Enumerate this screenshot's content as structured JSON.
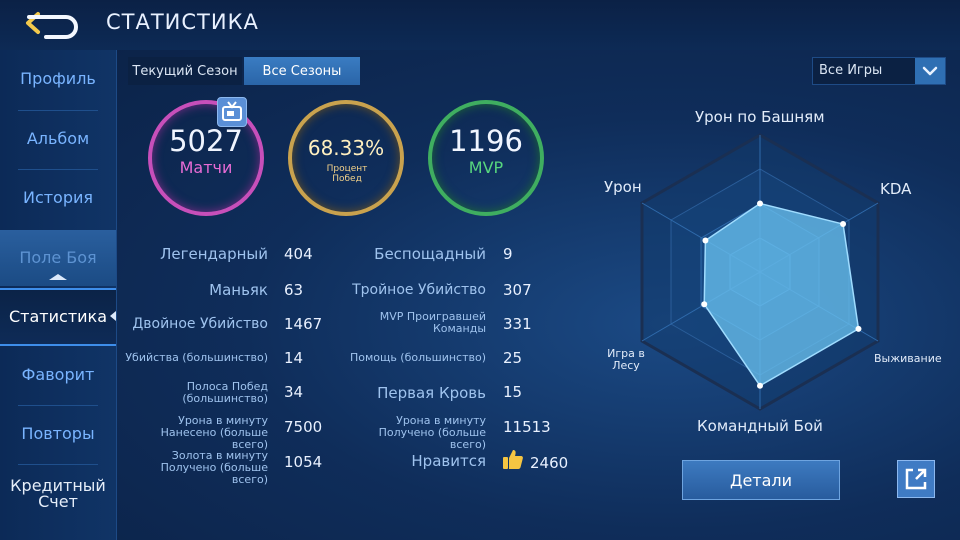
{
  "header": {
    "title": "СТАТИСТИКА",
    "back_icon": "back-arrow-icon"
  },
  "sidebar": {
    "items": [
      {
        "label": "Профиль"
      },
      {
        "label": "Альбом"
      },
      {
        "label": "История"
      },
      {
        "label": "Поле Боя"
      },
      {
        "label": "Статистика"
      },
      {
        "label": "Фаворит"
      },
      {
        "label": "Повторы"
      },
      {
        "label": "Кредитный Счет"
      }
    ]
  },
  "tabs": {
    "current": "Текущий Сезон",
    "all": "Все Сезоны"
  },
  "filter": {
    "selected": "Все Игры"
  },
  "summary": {
    "matches": {
      "value": "5027",
      "label": "Матчи"
    },
    "winrate": {
      "value": "68.33%",
      "label": "Процент Побед"
    },
    "mvp": {
      "value": "1196",
      "label": "MVP"
    }
  },
  "stats_left": [
    {
      "label": "Легендарный",
      "value": "404"
    },
    {
      "label": "Маньяк",
      "value": "63"
    },
    {
      "label": "Двойное Убийство",
      "value": "1467"
    },
    {
      "label": "Убийства (большинство)",
      "value": "14"
    },
    {
      "label": "Полоса Побед (большинство)",
      "value": "34"
    },
    {
      "label": "Урона в минуту Нанесено (больше всего)",
      "value": "7500"
    },
    {
      "label": "Золота в минуту Получено (больше всего)",
      "value": "1054"
    }
  ],
  "stats_right": [
    {
      "label": "Беспощадный",
      "value": "9"
    },
    {
      "label": "Тройное Убийство",
      "value": "307"
    },
    {
      "label": "MVP Проигравшей Команды",
      "value": "331"
    },
    {
      "label": "Помощь (большинство)",
      "value": "25"
    },
    {
      "label": "Первая Кровь",
      "value": "15"
    },
    {
      "label": "Урона в минуту Получено (больше всего)",
      "value": "11513"
    },
    {
      "label": "Нравится",
      "value": "2460"
    }
  ],
  "radar": {
    "labels": {
      "top": "Урон по Башням",
      "top_right": "KDA",
      "bottom_right": "Выживание",
      "bottom": "Командный Бой",
      "bottom_left": "Игра в Лесу",
      "top_left": "Урон"
    },
    "values": {
      "tower_damage": 0.5,
      "kda": 0.7,
      "survival": 0.83,
      "teamfight": 0.83,
      "jungle": 0.47,
      "damage": 0.46
    }
  },
  "buttons": {
    "details": "Детали"
  },
  "colors": {
    "accent": "#3e8eea",
    "matches_ring": "#c74fba",
    "winrate_ring": "#c9a24e",
    "mvp_ring": "#3fae60",
    "radar_fill": "#6bc3f0"
  }
}
